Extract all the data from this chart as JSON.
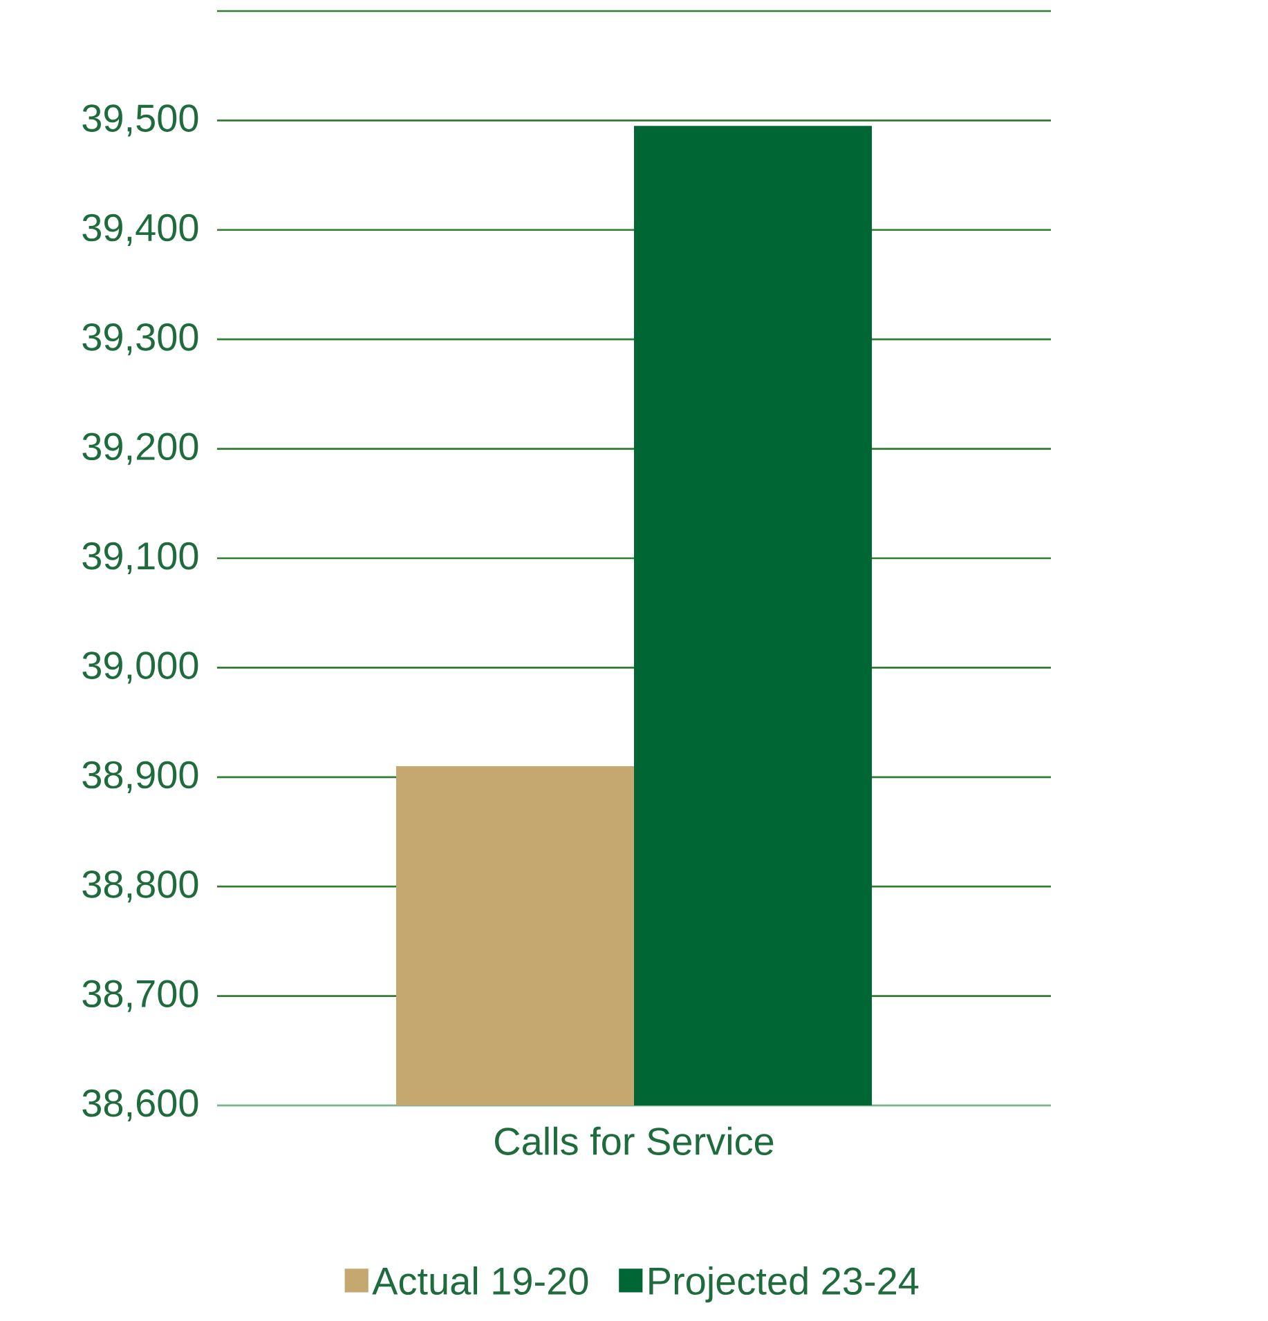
{
  "chart_data": {
    "type": "bar",
    "categories": [
      "Calls for Service"
    ],
    "series": [
      {
        "name": "Actual 19-20",
        "color": "#c5a86f",
        "values": [
          38910
        ]
      },
      {
        "name": "Projected 23-24",
        "color": "#006633",
        "values": [
          39495
        ]
      }
    ],
    "ylim": [
      38600,
      39600
    ],
    "yticks": [
      {
        "value": 38600,
        "label": "38,600"
      },
      {
        "value": 38700,
        "label": "38,700"
      },
      {
        "value": 38800,
        "label": "38,800"
      },
      {
        "value": 38900,
        "label": "38,900"
      },
      {
        "value": 39000,
        "label": "39,000"
      },
      {
        "value": 39100,
        "label": "39,100"
      },
      {
        "value": 39200,
        "label": "39,200"
      },
      {
        "value": 39300,
        "label": "39,300"
      },
      {
        "value": 39400,
        "label": "39,400"
      },
      {
        "value": 39500,
        "label": "39,500"
      },
      {
        "value": 39600,
        "label": null
      }
    ],
    "grid": "y",
    "legend": "bottom"
  }
}
